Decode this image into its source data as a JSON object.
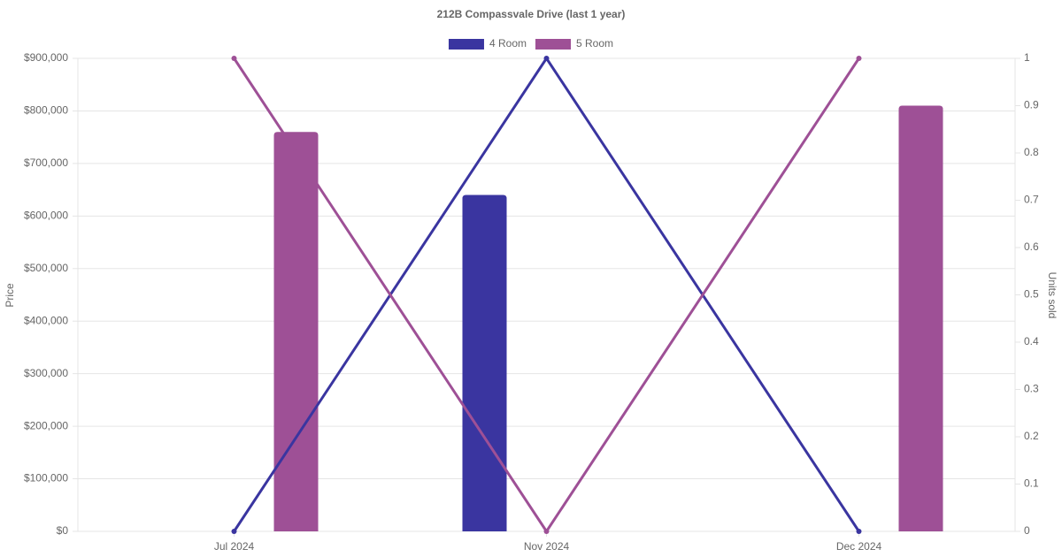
{
  "chart_data": {
    "type": "combo",
    "title": "212B Compassvale Drive (last 1 year)",
    "categories": [
      "Jul 2024",
      "Nov 2024",
      "Dec 2024"
    ],
    "series": [
      {
        "name": "4 Room",
        "color": "#3a35a0",
        "values": [
          null,
          640000,
          null
        ],
        "units": [
          0,
          1,
          0
        ]
      },
      {
        "name": "5 Room",
        "color": "#9e5096",
        "values": [
          760000,
          null,
          810000
        ],
        "units": [
          1,
          0,
          1
        ]
      }
    ],
    "y_label": "Price",
    "y2_label": "Units sold",
    "ylim": [
      0,
      900000
    ],
    "yticks": [
      {
        "value": 0,
        "label": "$0"
      },
      {
        "value": 100000,
        "label": "$100,000"
      },
      {
        "value": 200000,
        "label": "$200,000"
      },
      {
        "value": 300000,
        "label": "$300,000"
      },
      {
        "value": 400000,
        "label": "$400,000"
      },
      {
        "value": 500000,
        "label": "$500,000"
      },
      {
        "value": 600000,
        "label": "$600,000"
      },
      {
        "value": 700000,
        "label": "$700,000"
      },
      {
        "value": 800000,
        "label": "$800,000"
      },
      {
        "value": 900000,
        "label": "$900,000"
      }
    ],
    "y2lim": [
      0,
      1
    ],
    "y2ticks": [
      0,
      0.1,
      0.2,
      0.3,
      0.4,
      0.5,
      0.6,
      0.7,
      0.8,
      0.9,
      1
    ],
    "grid": true,
    "legend": "top"
  }
}
